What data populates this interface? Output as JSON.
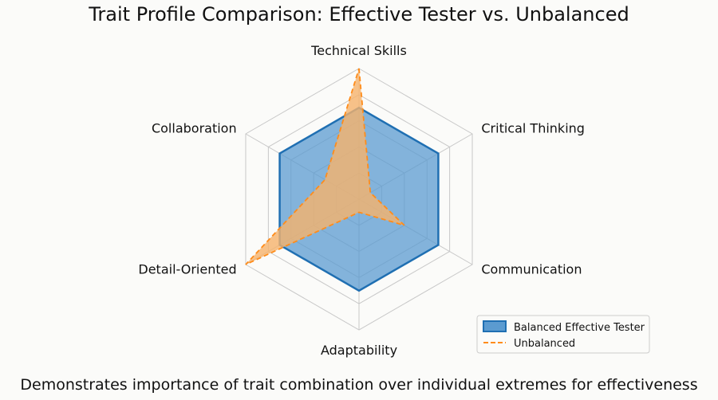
{
  "chart_data": {
    "type": "radar",
    "title": "Trait Profile Comparison: Effective Tester vs. Unbalanced",
    "caption": "Demonstrates importance of trait combination over individual extremes for effectiveness",
    "axes": [
      "Technical Skills",
      "Critical Thinking",
      "Communication",
      "Adaptability",
      "Detail-Oriented",
      "Collaboration"
    ],
    "rlim": [
      0,
      10
    ],
    "grid_levels": [
      2,
      4,
      6,
      8,
      10
    ],
    "grid": true,
    "legend_position": "bottom-right",
    "series": [
      {
        "name": "Balanced Effective Tester",
        "values": [
          7,
          7,
          7,
          7,
          7,
          7
        ],
        "color": "#1f6fb2",
        "fill": "#5b9bd0",
        "style": "solid"
      },
      {
        "name": "Unbalanced",
        "values": [
          10,
          1,
          4,
          1,
          10,
          3
        ],
        "color": "#ff8c1a",
        "fill": "#f6b36c",
        "style": "dashed"
      }
    ]
  }
}
